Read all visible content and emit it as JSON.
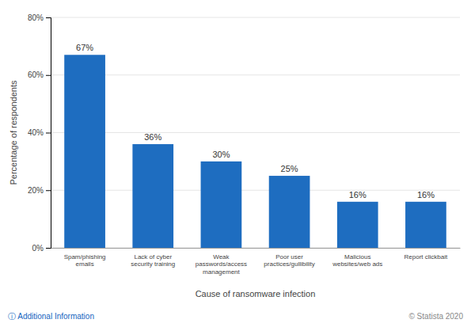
{
  "chart_data": {
    "type": "bar",
    "categories": [
      "Spam/phishing\nemails",
      "Lack of cyber\nsecurity training",
      "Weak\npasswords/access\nmanagement",
      "Poor user\npractices/gullibility",
      "Malicious\nwebsites/web ads",
      "Report clickbait"
    ],
    "values": [
      67,
      36,
      30,
      25,
      16,
      16
    ],
    "value_labels": [
      "67%",
      "36%",
      "30%",
      "25%",
      "16%",
      "16%"
    ],
    "data_labels": true,
    "color": "#1e6dc0",
    "ylabel": "Percentage of respondents",
    "xlabel": "Cause of ransomware infection",
    "ylim": [
      0,
      80
    ],
    "yticks": [
      {
        "value": 0,
        "label": "0%"
      },
      {
        "value": 20,
        "label": "20%"
      },
      {
        "value": 40,
        "label": "40%"
      },
      {
        "value": 60,
        "label": "60%"
      },
      {
        "value": 80,
        "label": "80%"
      }
    ],
    "grid": true,
    "annotations": [
      "ⓘ Additional Information",
      "© Statista 2020"
    ]
  }
}
